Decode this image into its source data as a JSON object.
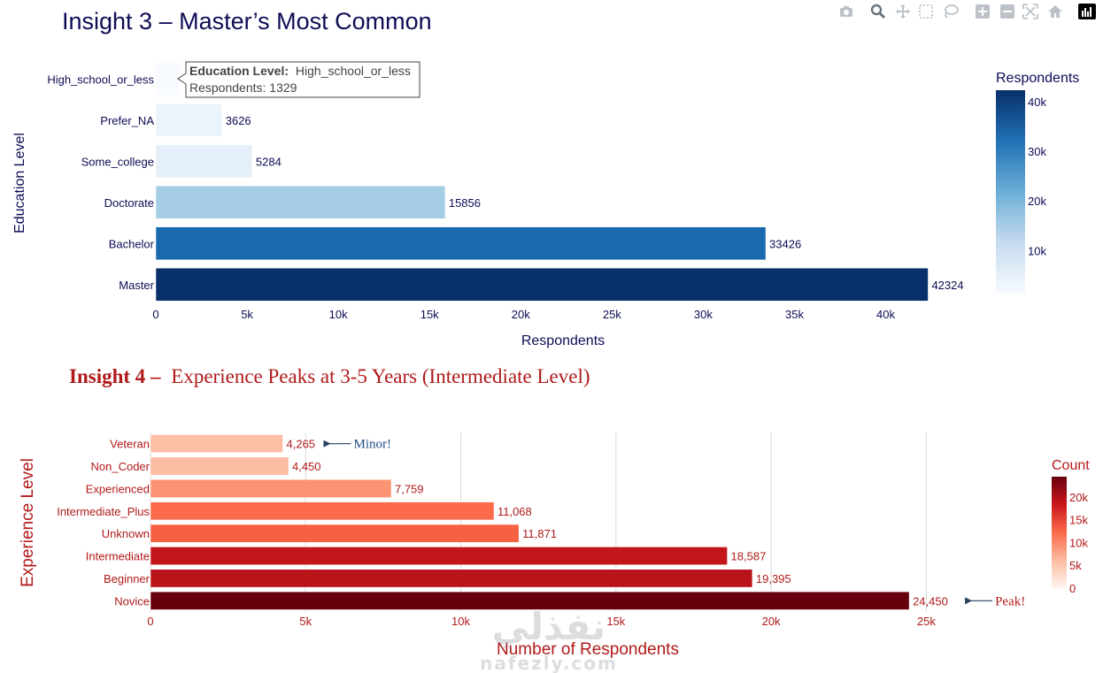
{
  "modebar": {
    "icons": [
      "camera-icon",
      "zoom-icon",
      "pan-icon",
      "box-select-icon",
      "lasso-select-icon",
      "zoom-in-icon",
      "zoom-out-icon",
      "autoscale-icon",
      "reset-axes-icon",
      "plotly-logo-icon"
    ]
  },
  "chart_data": [
    {
      "type": "bar",
      "orientation": "horizontal",
      "title": "Insight 3 – Master’s Most Common",
      "xlabel": "Respondents",
      "ylabel": "Education Level",
      "categories": [
        "High_school_or_less",
        "Prefer_NA",
        "Some_college",
        "Doctorate",
        "Bachelor",
        "Master"
      ],
      "values": [
        1329,
        3626,
        5284,
        15856,
        33426,
        42324
      ],
      "value_labels": [
        "",
        "3626",
        "5284",
        "15856",
        "33426",
        "42324"
      ],
      "xlim": [
        0,
        44000
      ],
      "xticks": [
        0,
        5000,
        10000,
        15000,
        20000,
        25000,
        30000,
        35000,
        40000
      ],
      "xtick_labels": [
        "0",
        "5k",
        "10k",
        "15k",
        "20k",
        "25k",
        "30k",
        "35k",
        "40k"
      ],
      "grid": false,
      "colorscale": "Blues",
      "colorbar": {
        "title": "Respondents",
        "ticks": [
          10000,
          20000,
          30000,
          40000
        ],
        "tick_labels": [
          "10k",
          "20k",
          "30k",
          "40k"
        ],
        "range": [
          1329,
          42324
        ]
      },
      "hover": {
        "category_label": "Education Level:",
        "category_value": "High_school_or_less",
        "value_line": "Respondents: 1329"
      }
    },
    {
      "type": "bar",
      "orientation": "horizontal",
      "title_bold": "Insight 4 –",
      "title_rest": "Experience Peaks at 3-5 Years (Intermediate Level)",
      "xlabel": "Number of Respondents",
      "ylabel": "Experience Level",
      "categories": [
        "Veteran",
        "Non_Coder",
        "Experienced",
        "Intermediate_Plus",
        "Unknown",
        "Intermediate",
        "Beginner",
        "Novice"
      ],
      "values": [
        4265,
        4450,
        7759,
        11068,
        11871,
        18587,
        19395,
        24450
      ],
      "value_labels": [
        "4,265",
        "4,450",
        "7,759",
        "11,068",
        "11,871",
        "18,587",
        "19,395",
        "24,450"
      ],
      "xlim": [
        0,
        27500
      ],
      "xticks": [
        0,
        5000,
        10000,
        15000,
        20000,
        25000
      ],
      "xtick_labels": [
        "0",
        "5k",
        "10k",
        "15k",
        "20k",
        "25k"
      ],
      "grid": true,
      "colorscale": "Reds",
      "colorbar": {
        "title": "Count",
        "ticks": [
          0,
          5000,
          10000,
          15000,
          20000
        ],
        "tick_labels": [
          "0",
          "5k",
          "10k",
          "15k",
          "20k"
        ],
        "range": [
          0,
          24450
        ]
      },
      "annotations": [
        {
          "text": "Minor!",
          "category": "Veteran",
          "value": 4265
        },
        {
          "text": "Peak!",
          "category": "Novice",
          "value": 24450
        }
      ]
    }
  ],
  "watermark": {
    "arabic": "نفذلي",
    "latin": "nafezly.com"
  }
}
